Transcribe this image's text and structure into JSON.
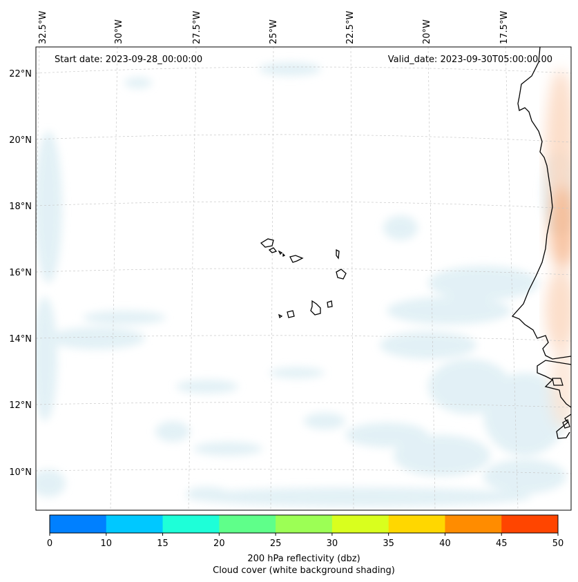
{
  "map": {
    "start_date": "Start date: 2023-09-28_00:00:00",
    "valid_date": "Valid_date: 2023-09-30T05:00:00.00",
    "lon_labels": [
      "32.5°W",
      "30°W",
      "27.5°W",
      "25°W",
      "22.5°W",
      "20°W",
      "17.5°W"
    ],
    "lat_labels": [
      "22°N",
      "20°N",
      "18°N",
      "16°N",
      "14°N",
      "12°N",
      "10°N"
    ],
    "gridlines": "dashed",
    "coastline_color": "#000000",
    "cloud_color": "#cfe6ef",
    "features": [
      "Cape Verde islands",
      "West African coastline"
    ]
  },
  "colorbar": {
    "label_line1": "200 hPa reflectivity (dbz)",
    "label_line2": "Cloud cover (white background shading)",
    "ticks": [
      "0",
      "10",
      "15",
      "20",
      "25",
      "30",
      "35",
      "40",
      "45",
      "50"
    ],
    "colors": [
      "#0080ff",
      "#00c8ff",
      "#1effd8",
      "#5fff8a",
      "#9cff55",
      "#d9ff1e",
      "#ffd700",
      "#ff8c00",
      "#ff4500"
    ]
  }
}
